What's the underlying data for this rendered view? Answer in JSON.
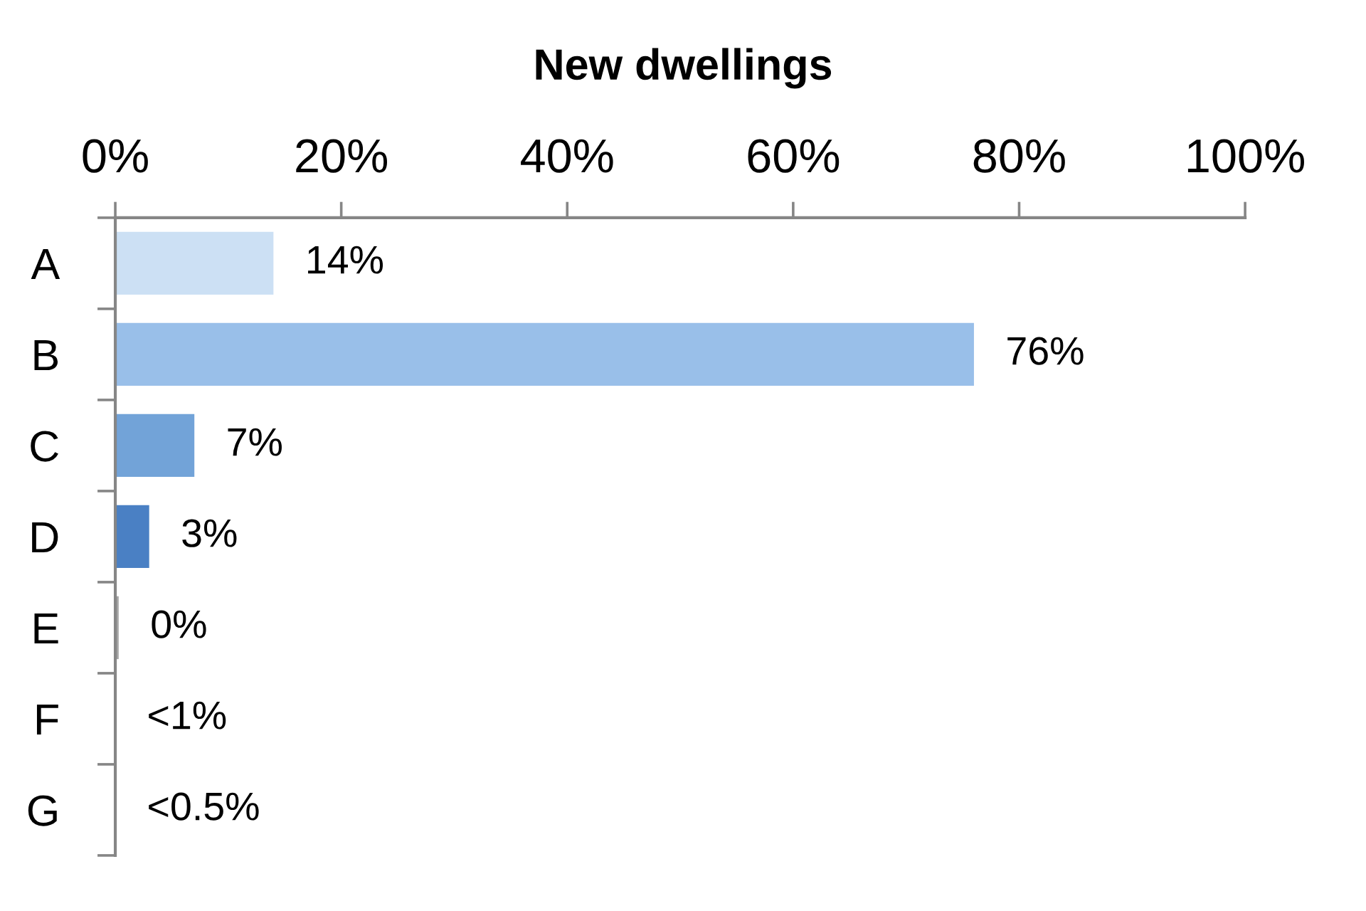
{
  "chart_data": {
    "type": "bar",
    "orientation": "horizontal",
    "title": "New dwellings",
    "categories": [
      "A",
      "B",
      "C",
      "D",
      "E",
      "F",
      "G"
    ],
    "values": [
      14,
      76,
      7,
      3,
      0.3,
      0,
      0
    ],
    "colors": [
      "#cce0f4",
      "#99bfe9",
      "#72a3d8",
      "#4a80c4",
      "#a6a6a6",
      "#a6a6a6",
      "#a6a6a6"
    ],
    "value_labels": [
      "14%",
      "76%",
      "7%",
      "3%",
      "0%",
      "<1%",
      "<0.5%"
    ],
    "xlim": [
      0,
      100
    ],
    "xticks": [
      {
        "value": 0,
        "label": "0%"
      },
      {
        "value": 20,
        "label": "20%"
      },
      {
        "value": 40,
        "label": "40%"
      },
      {
        "value": 60,
        "label": "60%"
      },
      {
        "value": 80,
        "label": "80%"
      },
      {
        "value": 100,
        "label": "100%"
      }
    ]
  }
}
